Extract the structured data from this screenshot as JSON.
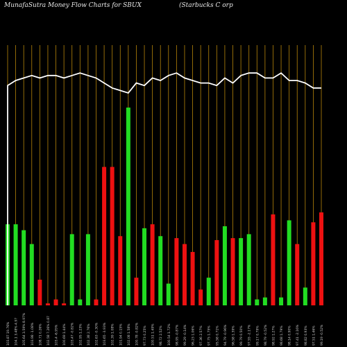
{
  "header": {
    "title_left": "MunafaSutra  Money Flow  Charts for SBUX",
    "title_right": "(Starbucks C                                       orp"
  },
  "colors": {
    "background": "#000000",
    "grid": "#b8860b",
    "up": "#22dd22",
    "down": "#ee1111",
    "line": "#ffffff",
    "label": "#cfcfcf"
  },
  "chart_data": {
    "type": "bar",
    "grid": true,
    "ylim": [
      0,
      100
    ],
    "categories": [
      "103.87 19.76%",
      "104.1  3.48% 4.97",
      "105.64 3.59% 8.97%",
      "103.98 -1.08%",
      "108.71 0.26%",
      "102.58 7.26% 0.87",
      "103.4 -6.95%",
      "100.69 1.44%",
      "103.47 -0.82%",
      "102.95 1.23%",
      "102.38 2.76%",
      "102.63 -0.30%",
      "103.65 -3.93%",
      "102.39 1.08%",
      "101.94 0.15%",
      "102.08 1.58%",
      "100.78 -0.82%",
      "97.73 0.25%",
      "100.51 1.49%",
      "98.72 2.52%",
      "100.54 1.72%",
      "98.95 -0.87%",
      "99.29 -0.14%",
      "96.23 1.06%",
      "97.36 2.57%",
      "97.75 1.75%",
      "95.58 0.71%",
      "94.79 -0.96%",
      "96.58 1.39%",
      "99.79 0.50%",
      "97.55 -2.17%",
      "99.17 0.79%",
      "98.79 -0.52%",
      "98.92 1.27%",
      "98.68 1.79%",
      "98.14 0.90%",
      "97.41 -2.16%",
      "98.82 0.93%",
      "97.51 1.46%",
      "99.19 -0.52%"
    ],
    "values": [
      41,
      41,
      28,
      22,
      13,
      1,
      3,
      1,
      26,
      3,
      36,
      3,
      70,
      70,
      35,
      100,
      14,
      39,
      41,
      35,
      11,
      33,
      30,
      25,
      8,
      14,
      33,
      40,
      34,
      34,
      36,
      3,
      4,
      36,
      2,
      43,
      31,
      9,
      42,
      47
    ],
    "colors": [
      "green",
      "green",
      "green",
      "green",
      "red",
      "red",
      "red",
      "red",
      "green",
      "green",
      "green",
      "red",
      "red",
      "red",
      "red",
      "green",
      "red",
      "green",
      "red",
      "green",
      "green",
      "red",
      "red",
      "red",
      "red",
      "green",
      "red",
      "green",
      "red",
      "green",
      "green",
      "green",
      "green",
      "red",
      "green",
      "green",
      "red",
      "green",
      "red",
      "red"
    ],
    "values_corrected": [
      41,
      41,
      38,
      31,
      13,
      1,
      3,
      1,
      36,
      3,
      36,
      3,
      70,
      70,
      35,
      100,
      14,
      39,
      41,
      35,
      11,
      34,
      31,
      27,
      8,
      14,
      33,
      40,
      34,
      34,
      36,
      3,
      4,
      46,
      4,
      43,
      31,
      9,
      42,
      47
    ],
    "line": [
      88,
      90,
      91,
      92,
      91,
      92,
      92,
      91,
      92,
      93,
      92,
      91,
      89,
      87,
      86,
      85,
      89,
      88,
      91,
      90,
      92,
      93,
      91,
      90,
      89,
      89,
      88,
      91,
      89,
      92,
      93,
      93,
      91,
      91,
      93,
      90,
      90,
      89,
      87,
      87
    ]
  }
}
